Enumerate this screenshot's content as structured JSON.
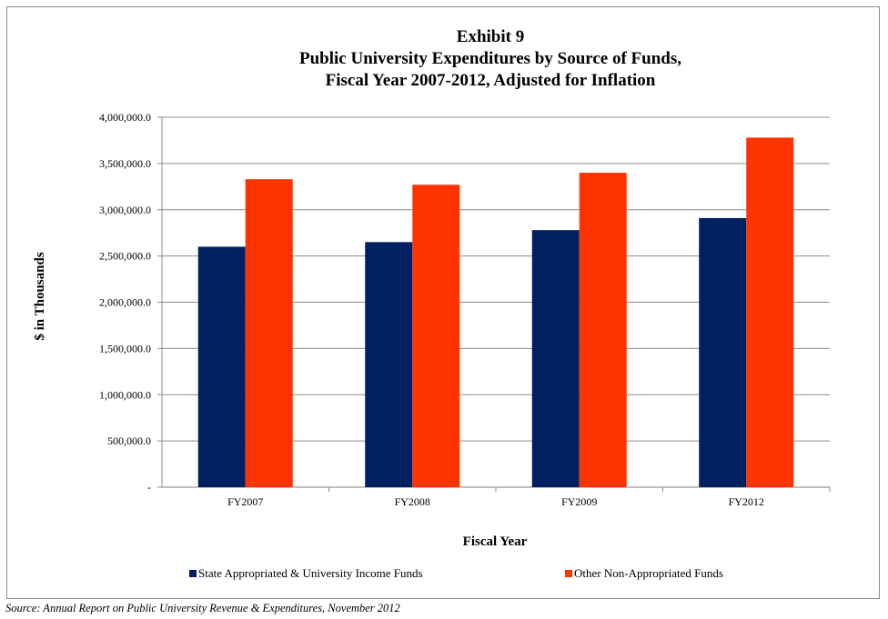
{
  "chart_data": {
    "type": "bar",
    "title": [
      "Exhibit 9",
      "Public University Expenditures by Source of Funds,",
      "Fiscal Year 2007-2012, Adjusted for Inflation"
    ],
    "categories": [
      "FY2007",
      "FY2008",
      "FY2009",
      "FY2012"
    ],
    "series": [
      {
        "name": "State Appropriated & University  Income Funds",
        "color": "#002060",
        "values": [
          2600000,
          2650000,
          2780000,
          2910000
        ]
      },
      {
        "name": "Other Non-Appropriated Funds",
        "color": "#ff3300",
        "values": [
          3330000,
          3270000,
          3400000,
          3780000
        ]
      }
    ],
    "xlabel": "Fiscal Year",
    "ylabel": "$ in Thousands",
    "ylim": [
      0,
      4000000
    ],
    "yticks": [
      0,
      500000,
      1000000,
      1500000,
      2000000,
      2500000,
      3000000,
      3500000,
      4000000
    ],
    "ytick_labels": [
      "-",
      "500,000.0",
      "1,000,000.0",
      "1,500,000.0",
      "2,000,000.0",
      "2,500,000.0",
      "3,000,000.0",
      "3,500,000.0",
      "4,000,000.0"
    ],
    "grid": true,
    "legend_position": "bottom"
  },
  "source_note": "Source: Annual Report on Public University Revenue & Expenditures, November 2012"
}
